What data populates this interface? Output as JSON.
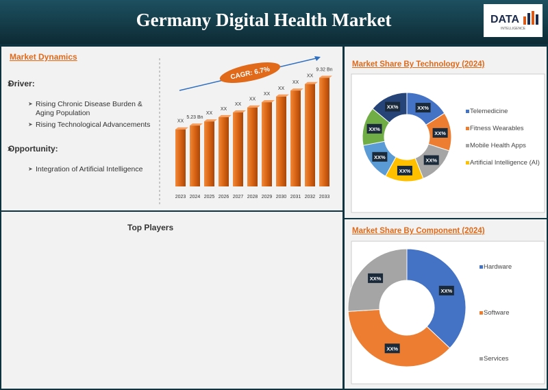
{
  "header": {
    "title": "Germany Digital Health Market",
    "logo": {
      "text": "DATA",
      "subtext": "INTELLIGENCE"
    }
  },
  "market_dynamics": {
    "title": "Market Dynamics",
    "sections": [
      {
        "heading": "Driver:",
        "items": [
          "Rising Chronic Disease Burden & Aging Population",
          "Rising Technological Advancements"
        ]
      },
      {
        "heading": "Opportunity:",
        "items": [
          "Integration of Artificial Intelligence"
        ]
      }
    ]
  },
  "top_players": {
    "title": "Top Players"
  },
  "chart_data": [
    {
      "type": "bar",
      "annotation": "CAGR: 6.7%",
      "categories": [
        "2023",
        "2024",
        "2025",
        "2026",
        "2027",
        "2028",
        "2029",
        "2030",
        "2031",
        "2032",
        "2033"
      ],
      "values": [
        4.9,
        5.23,
        5.58,
        5.95,
        6.35,
        6.78,
        7.23,
        7.72,
        8.23,
        8.79,
        9.32
      ],
      "value_labels": [
        "XX",
        "5.23 Bn",
        "XX",
        "XX",
        "XX",
        "XX",
        "XX",
        "XX",
        "XX",
        "XX",
        "9.32 Bn"
      ],
      "color": "#e0701e"
    },
    {
      "type": "donut",
      "title": "Market Share By Technology (2024)",
      "categories": [
        "Telemedicine",
        "Fitness Wearables",
        "Mobile Health Apps",
        "Artificial Intelligence (AI)",
        null,
        null,
        null
      ],
      "values": [
        16,
        14,
        14,
        14,
        14,
        14,
        14
      ],
      "value_labels": [
        "XX%",
        "XX%",
        "XX%",
        "XX%",
        "XX%",
        "XX%",
        "XX%"
      ],
      "colors": [
        "#4472c4",
        "#ed7d31",
        "#a5a5a5",
        "#ffc000",
        "#5b9bd5",
        "#70ad47",
        "#264478"
      ]
    },
    {
      "type": "donut",
      "title": "Market Share By Component (2024)",
      "categories": [
        "Hardware",
        "Software",
        "Services"
      ],
      "values": [
        37,
        37,
        26
      ],
      "value_labels": [
        "XX%",
        "XX%",
        "XX%"
      ],
      "colors": [
        "#4472c4",
        "#ed7d31",
        "#a5a5a5"
      ]
    }
  ]
}
